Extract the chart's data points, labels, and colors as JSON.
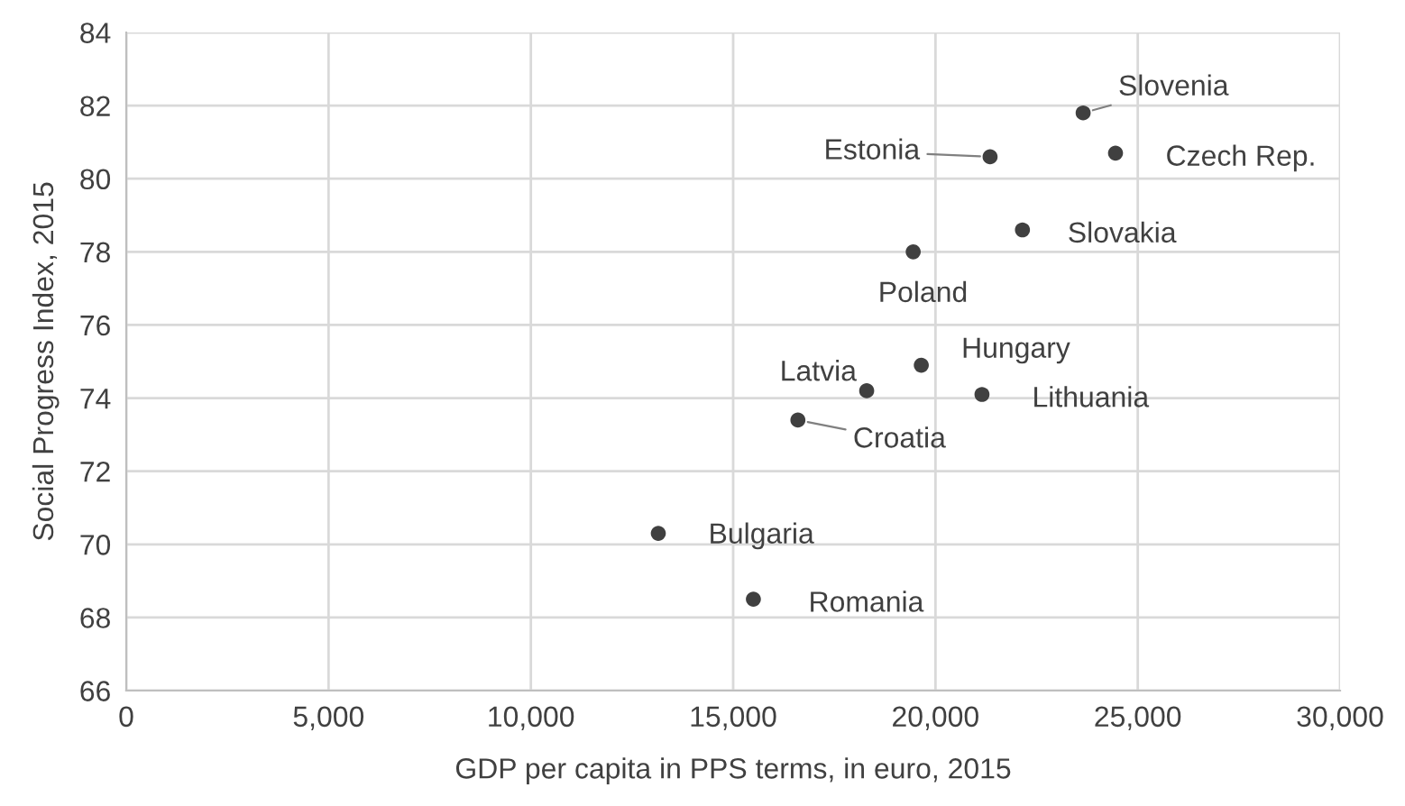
{
  "chart_data": {
    "type": "scatter",
    "xlabel": "GDP per capita in PPS terms, in euro, 2015",
    "ylabel": "Social Progress Index, 2015",
    "x": [
      23650,
      24450,
      21350,
      22150,
      19450,
      19650,
      18300,
      21150,
      16600,
      13150,
      15500
    ],
    "values": [
      81.8,
      80.7,
      80.6,
      78.6,
      78.0,
      74.9,
      74.2,
      74.1,
      73.4,
      70.3,
      68.5
    ],
    "color": "#404040",
    "marker": "circle",
    "annotations": [
      {
        "text": "Slovenia",
        "x": 23650,
        "y": 81.8
      },
      {
        "text": "Czech Rep.",
        "x": 24450,
        "y": 80.7
      },
      {
        "text": "Estonia",
        "x": 21350,
        "y": 80.6
      },
      {
        "text": "Slovakia",
        "x": 22150,
        "y": 78.6
      },
      {
        "text": "Poland",
        "x": 19450,
        "y": 78.0
      },
      {
        "text": "Hungary",
        "x": 19650,
        "y": 74.9
      },
      {
        "text": "Latvia",
        "x": 18300,
        "y": 74.2
      },
      {
        "text": "Lithuania",
        "x": 21150,
        "y": 74.1
      },
      {
        "text": "Croatia",
        "x": 16600,
        "y": 73.4
      },
      {
        "text": "Bulgaria",
        "x": 13150,
        "y": 70.3
      },
      {
        "text": "Romania",
        "x": 15500,
        "y": 68.5
      }
    ],
    "xlim": [
      0,
      30000
    ],
    "ylim": [
      66,
      84
    ],
    "xticks": [
      0,
      {
        "value": 5000,
        "label": "5,000"
      },
      {
        "value": 10000,
        "label": "10,000"
      },
      {
        "value": 15000,
        "label": "15,000"
      },
      {
        "value": 20000,
        "label": "20,000"
      },
      {
        "value": 25000,
        "label": "25,000"
      },
      {
        "value": 30000,
        "label": "30,000"
      }
    ],
    "yticks": [
      66,
      68,
      70,
      72,
      74,
      76,
      78,
      80,
      82,
      84
    ],
    "grid": true
  }
}
